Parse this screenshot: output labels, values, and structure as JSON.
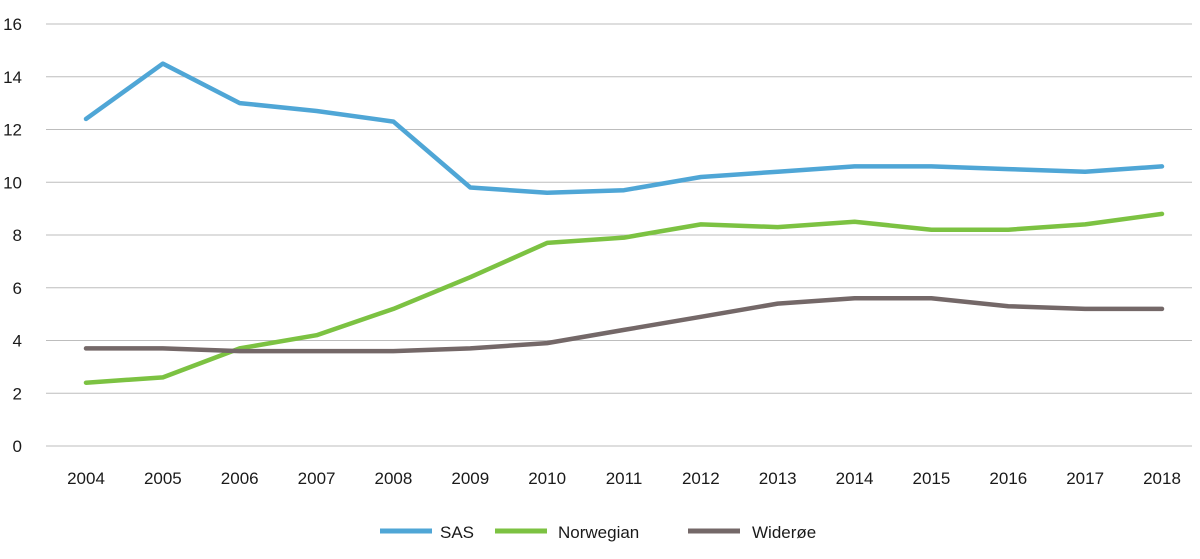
{
  "chart_data": {
    "type": "line",
    "title": "",
    "xlabel": "",
    "ylabel": "",
    "ylim": [
      0,
      16
    ],
    "yticks": [
      "0",
      "2",
      "4",
      "6",
      "8",
      "10",
      "12",
      "14",
      "16"
    ],
    "categories": [
      "2004",
      "2005",
      "2006",
      "2007",
      "2008",
      "2009",
      "2010",
      "2011",
      "2012",
      "2013",
      "2014",
      "2015",
      "2016",
      "2017",
      "2018"
    ],
    "grid": true,
    "legend_position": "bottom-center",
    "series": [
      {
        "name": "SAS",
        "color": "#4fa6d6",
        "values": [
          12.4,
          14.5,
          13.0,
          12.7,
          12.3,
          9.8,
          9.6,
          9.7,
          10.2,
          10.4,
          10.6,
          10.6,
          10.5,
          10.4,
          10.6
        ]
      },
      {
        "name": "Norwegian",
        "color": "#7cc242",
        "values": [
          2.4,
          2.6,
          3.7,
          4.2,
          5.2,
          6.4,
          7.7,
          7.9,
          8.4,
          8.3,
          8.5,
          8.2,
          8.2,
          8.4,
          8.8
        ]
      },
      {
        "name": "Widerøe",
        "color": "#746868",
        "values": [
          3.7,
          3.7,
          3.6,
          3.6,
          3.6,
          3.7,
          3.9,
          4.4,
          4.9,
          5.4,
          5.6,
          5.6,
          5.3,
          5.2,
          5.2
        ]
      }
    ]
  }
}
